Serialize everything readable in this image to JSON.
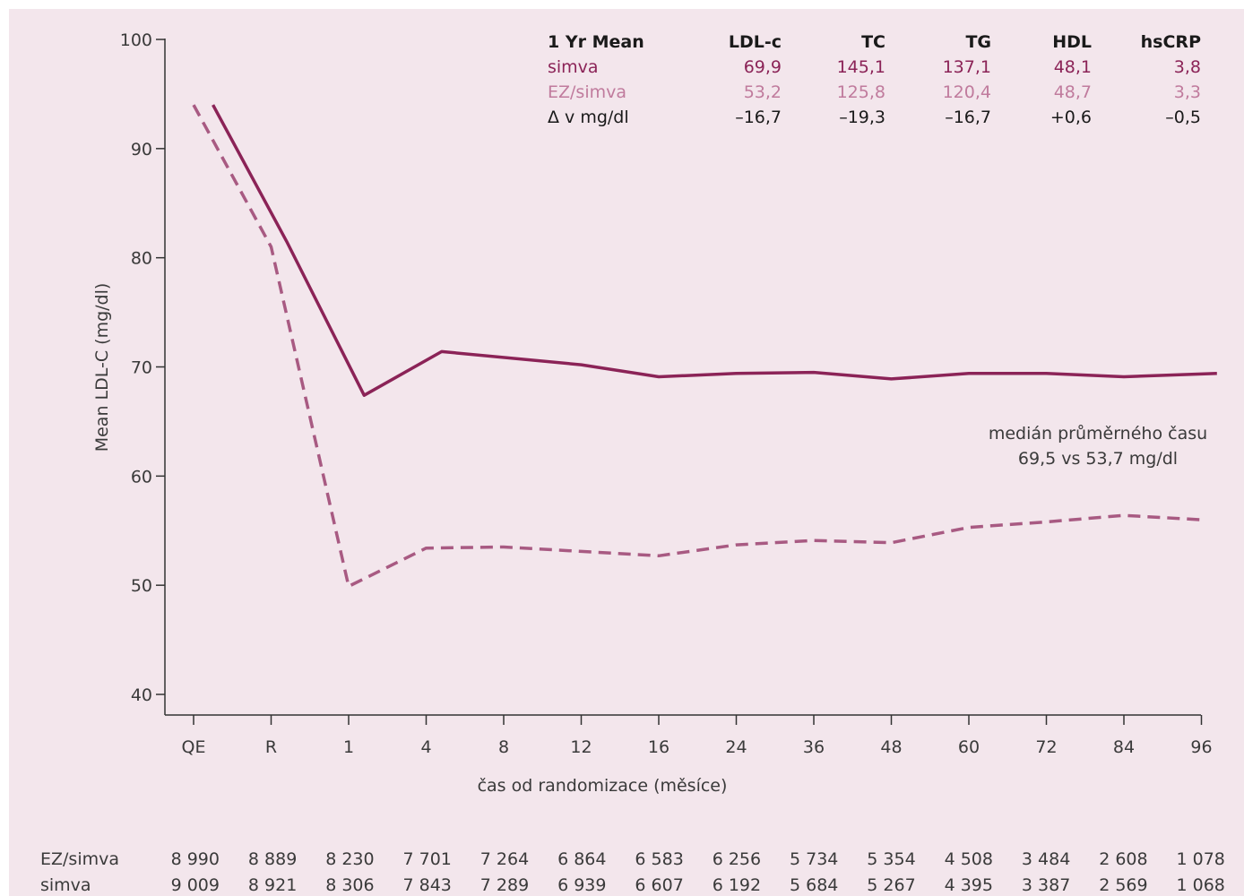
{
  "colors": {
    "background": "#f3e6ec",
    "simva": "#8b2357",
    "ezsimva": "#c07b9d",
    "axis": "#333333",
    "text": "#3a3a3a"
  },
  "chart_data": {
    "type": "line",
    "xlabel": "čas od randomizace (měsíce)",
    "ylabel": "Mean LDL-C (mg/dl)",
    "ylim": [
      40,
      100
    ],
    "yticks": [
      "40",
      "50",
      "60",
      "70",
      "80",
      "90",
      "100"
    ],
    "categories": [
      "QE",
      "R",
      "1",
      "4",
      "8",
      "12",
      "16",
      "24",
      "36",
      "48",
      "60",
      "72",
      "84",
      "96"
    ],
    "grid": false,
    "series": [
      {
        "name": "simva",
        "style": "solid",
        "points": [
          {
            "x": 0.25,
            "y": 94.0
          },
          {
            "x": 1.2,
            "y": 81.5
          },
          {
            "x": 2.2,
            "y": 67.4
          },
          {
            "x": 3.2,
            "y": 71.4
          },
          {
            "x": 5.0,
            "y": 70.2
          },
          {
            "x": 6.0,
            "y": 69.1
          },
          {
            "x": 7.0,
            "y": 69.4
          },
          {
            "x": 8.0,
            "y": 69.5
          },
          {
            "x": 9.0,
            "y": 68.9
          },
          {
            "x": 10.0,
            "y": 69.4
          },
          {
            "x": 11.0,
            "y": 69.4
          },
          {
            "x": 12.0,
            "y": 69.1
          },
          {
            "x": 13.2,
            "y": 69.4
          }
        ]
      },
      {
        "name": "EZ/simva",
        "style": "dashed",
        "points": [
          {
            "x": 0.0,
            "y": 94.0
          },
          {
            "x": 1.0,
            "y": 81.0
          },
          {
            "x": 2.0,
            "y": 49.9
          },
          {
            "x": 3.0,
            "y": 53.4
          },
          {
            "x": 4.0,
            "y": 53.5
          },
          {
            "x": 5.0,
            "y": 53.1
          },
          {
            "x": 6.0,
            "y": 52.7
          },
          {
            "x": 7.0,
            "y": 53.7
          },
          {
            "x": 8.0,
            "y": 54.1
          },
          {
            "x": 9.0,
            "y": 53.9
          },
          {
            "x": 10.0,
            "y": 55.3
          },
          {
            "x": 11.0,
            "y": 55.8
          },
          {
            "x": 12.0,
            "y": 56.4
          },
          {
            "x": 13.0,
            "y": 56.0
          }
        ]
      }
    ],
    "annotation": [
      "medián průměrného času",
      "69,5 vs 53,7 mg/dl"
    ],
    "summary_table": {
      "headers": [
        "1 Yr Mean",
        "LDL-c",
        "TC",
        "TG",
        "HDL",
        "hsCRP"
      ],
      "rows": [
        {
          "key": "simva",
          "cells": [
            "simva",
            "69,9",
            "145,1",
            "137,1",
            "48,1",
            "3,8"
          ]
        },
        {
          "key": "ezsimva",
          "cells": [
            "EZ/simva",
            "53,2",
            "125,8",
            "120,4",
            "48,7",
            "3,3"
          ]
        },
        {
          "key": "delta",
          "cells": [
            "Δ v mg/dl",
            "–16,7",
            "–19,3",
            "–16,7",
            "+0,6",
            "–0,5"
          ]
        }
      ]
    },
    "at_risk": [
      {
        "label": "EZ/simva",
        "values": [
          "8 990",
          "8 889",
          "8 230",
          "7 701",
          "7 264",
          "6 864",
          "6 583",
          "6 256",
          "5 734",
          "5 354",
          "4 508",
          "3 484",
          "2 608",
          "1 078"
        ]
      },
      {
        "label": "simva",
        "values": [
          "9 009",
          "8 921",
          "8 306",
          "7 843",
          "7 289",
          "6 939",
          "6 607",
          "6 192",
          "5 684",
          "5 267",
          "4 395",
          "3 387",
          "2 569",
          "1 068"
        ]
      }
    ]
  }
}
